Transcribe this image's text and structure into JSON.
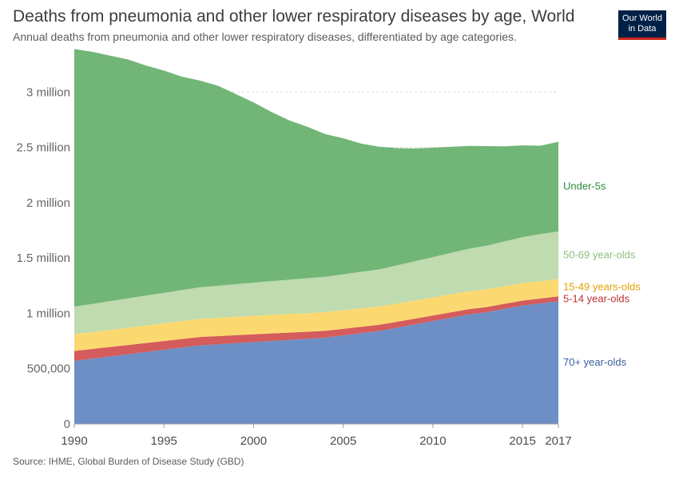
{
  "header": {
    "title": "Deaths from pneumonia and other lower respiratory diseases by age, World",
    "subtitle": "Annual deaths from pneumonia and other lower respiratory diseases, differentiated by age categories."
  },
  "logo": {
    "line1": "Our World",
    "line2": "in Data"
  },
  "footer": {
    "source": "Source: IHME, Global Burden of Disease Study (GBD)"
  },
  "chart_data": {
    "type": "area",
    "stacked": true,
    "title": "Deaths from pneumonia and other lower respiratory diseases by age, World",
    "subtitle": "Annual deaths from pneumonia and other lower respiratory diseases, differentiated by age categories.",
    "xlabel": "",
    "ylabel": "",
    "xlim": [
      1990,
      2017
    ],
    "ylim": [
      0,
      3400000
    ],
    "x_ticks": [
      1990,
      1995,
      2000,
      2005,
      2010,
      2015,
      2017
    ],
    "y_ticks": [
      {
        "value": 0,
        "label": "0"
      },
      {
        "value": 500000,
        "label": "500,000"
      },
      {
        "value": 1000000,
        "label": "1 million"
      },
      {
        "value": 1500000,
        "label": "1.5 million"
      },
      {
        "value": 2000000,
        "label": "2 million"
      },
      {
        "value": 2500000,
        "label": "2.5 million"
      },
      {
        "value": 3000000,
        "label": "3 million"
      }
    ],
    "grid": "horizontal dashed",
    "legend": "inline labels at right end",
    "x": [
      1990,
      1991,
      1992,
      1993,
      1994,
      1995,
      1996,
      1997,
      1998,
      1999,
      2000,
      2001,
      2002,
      2003,
      2004,
      2005,
      2006,
      2007,
      2008,
      2009,
      2010,
      2011,
      2012,
      2013,
      2014,
      2015,
      2016,
      2017
    ],
    "series": [
      {
        "name": "70+ year-olds",
        "color": "#6d8fc5",
        "values": [
          570000,
          590000,
          610000,
          630000,
          650000,
          670000,
          690000,
          710000,
          720000,
          730000,
          740000,
          750000,
          760000,
          770000,
          780000,
          800000,
          820000,
          840000,
          870000,
          900000,
          930000,
          960000,
          990000,
          1010000,
          1040000,
          1070000,
          1090000,
          1110000
        ]
      },
      {
        "name": "5-14 year-olds",
        "color": "#d55c5c",
        "values": [
          90000,
          88000,
          86000,
          84000,
          82000,
          80000,
          78000,
          76000,
          74000,
          72000,
          70000,
          68000,
          66000,
          64000,
          62000,
          60000,
          58000,
          56000,
          54000,
          52000,
          50000,
          49000,
          48000,
          47000,
          46000,
          45000,
          44000,
          43000
        ]
      },
      {
        "name": "15-49 years-olds",
        "color": "#fcd970",
        "values": [
          150000,
          152000,
          154000,
          156000,
          158000,
          160000,
          162000,
          164000,
          165000,
          166000,
          167000,
          168000,
          168000,
          168000,
          168000,
          168000,
          167000,
          166000,
          165000,
          164000,
          163000,
          162000,
          161000,
          160000,
          159000,
          158000,
          157000,
          156000
        ]
      },
      {
        "name": "50-69 year-olds",
        "color": "#bfdbaf",
        "values": [
          250000,
          255000,
          260000,
          265000,
          270000,
          275000,
          280000,
          285000,
          290000,
          295000,
          300000,
          305000,
          310000,
          315000,
          320000,
          325000,
          330000,
          335000,
          345000,
          355000,
          365000,
          375000,
          385000,
          395000,
          405000,
          415000,
          425000,
          432000
        ]
      },
      {
        "name": "Under-5s",
        "color": "#72b677",
        "values": [
          2330000,
          2280000,
          2220000,
          2160000,
          2080000,
          2010000,
          1930000,
          1870000,
          1810000,
          1720000,
          1630000,
          1530000,
          1440000,
          1370000,
          1290000,
          1230000,
          1160000,
          1110000,
          1060000,
          1020000,
          990000,
          960000,
          930000,
          900000,
          860000,
          830000,
          800000,
          810000
        ]
      }
    ]
  }
}
